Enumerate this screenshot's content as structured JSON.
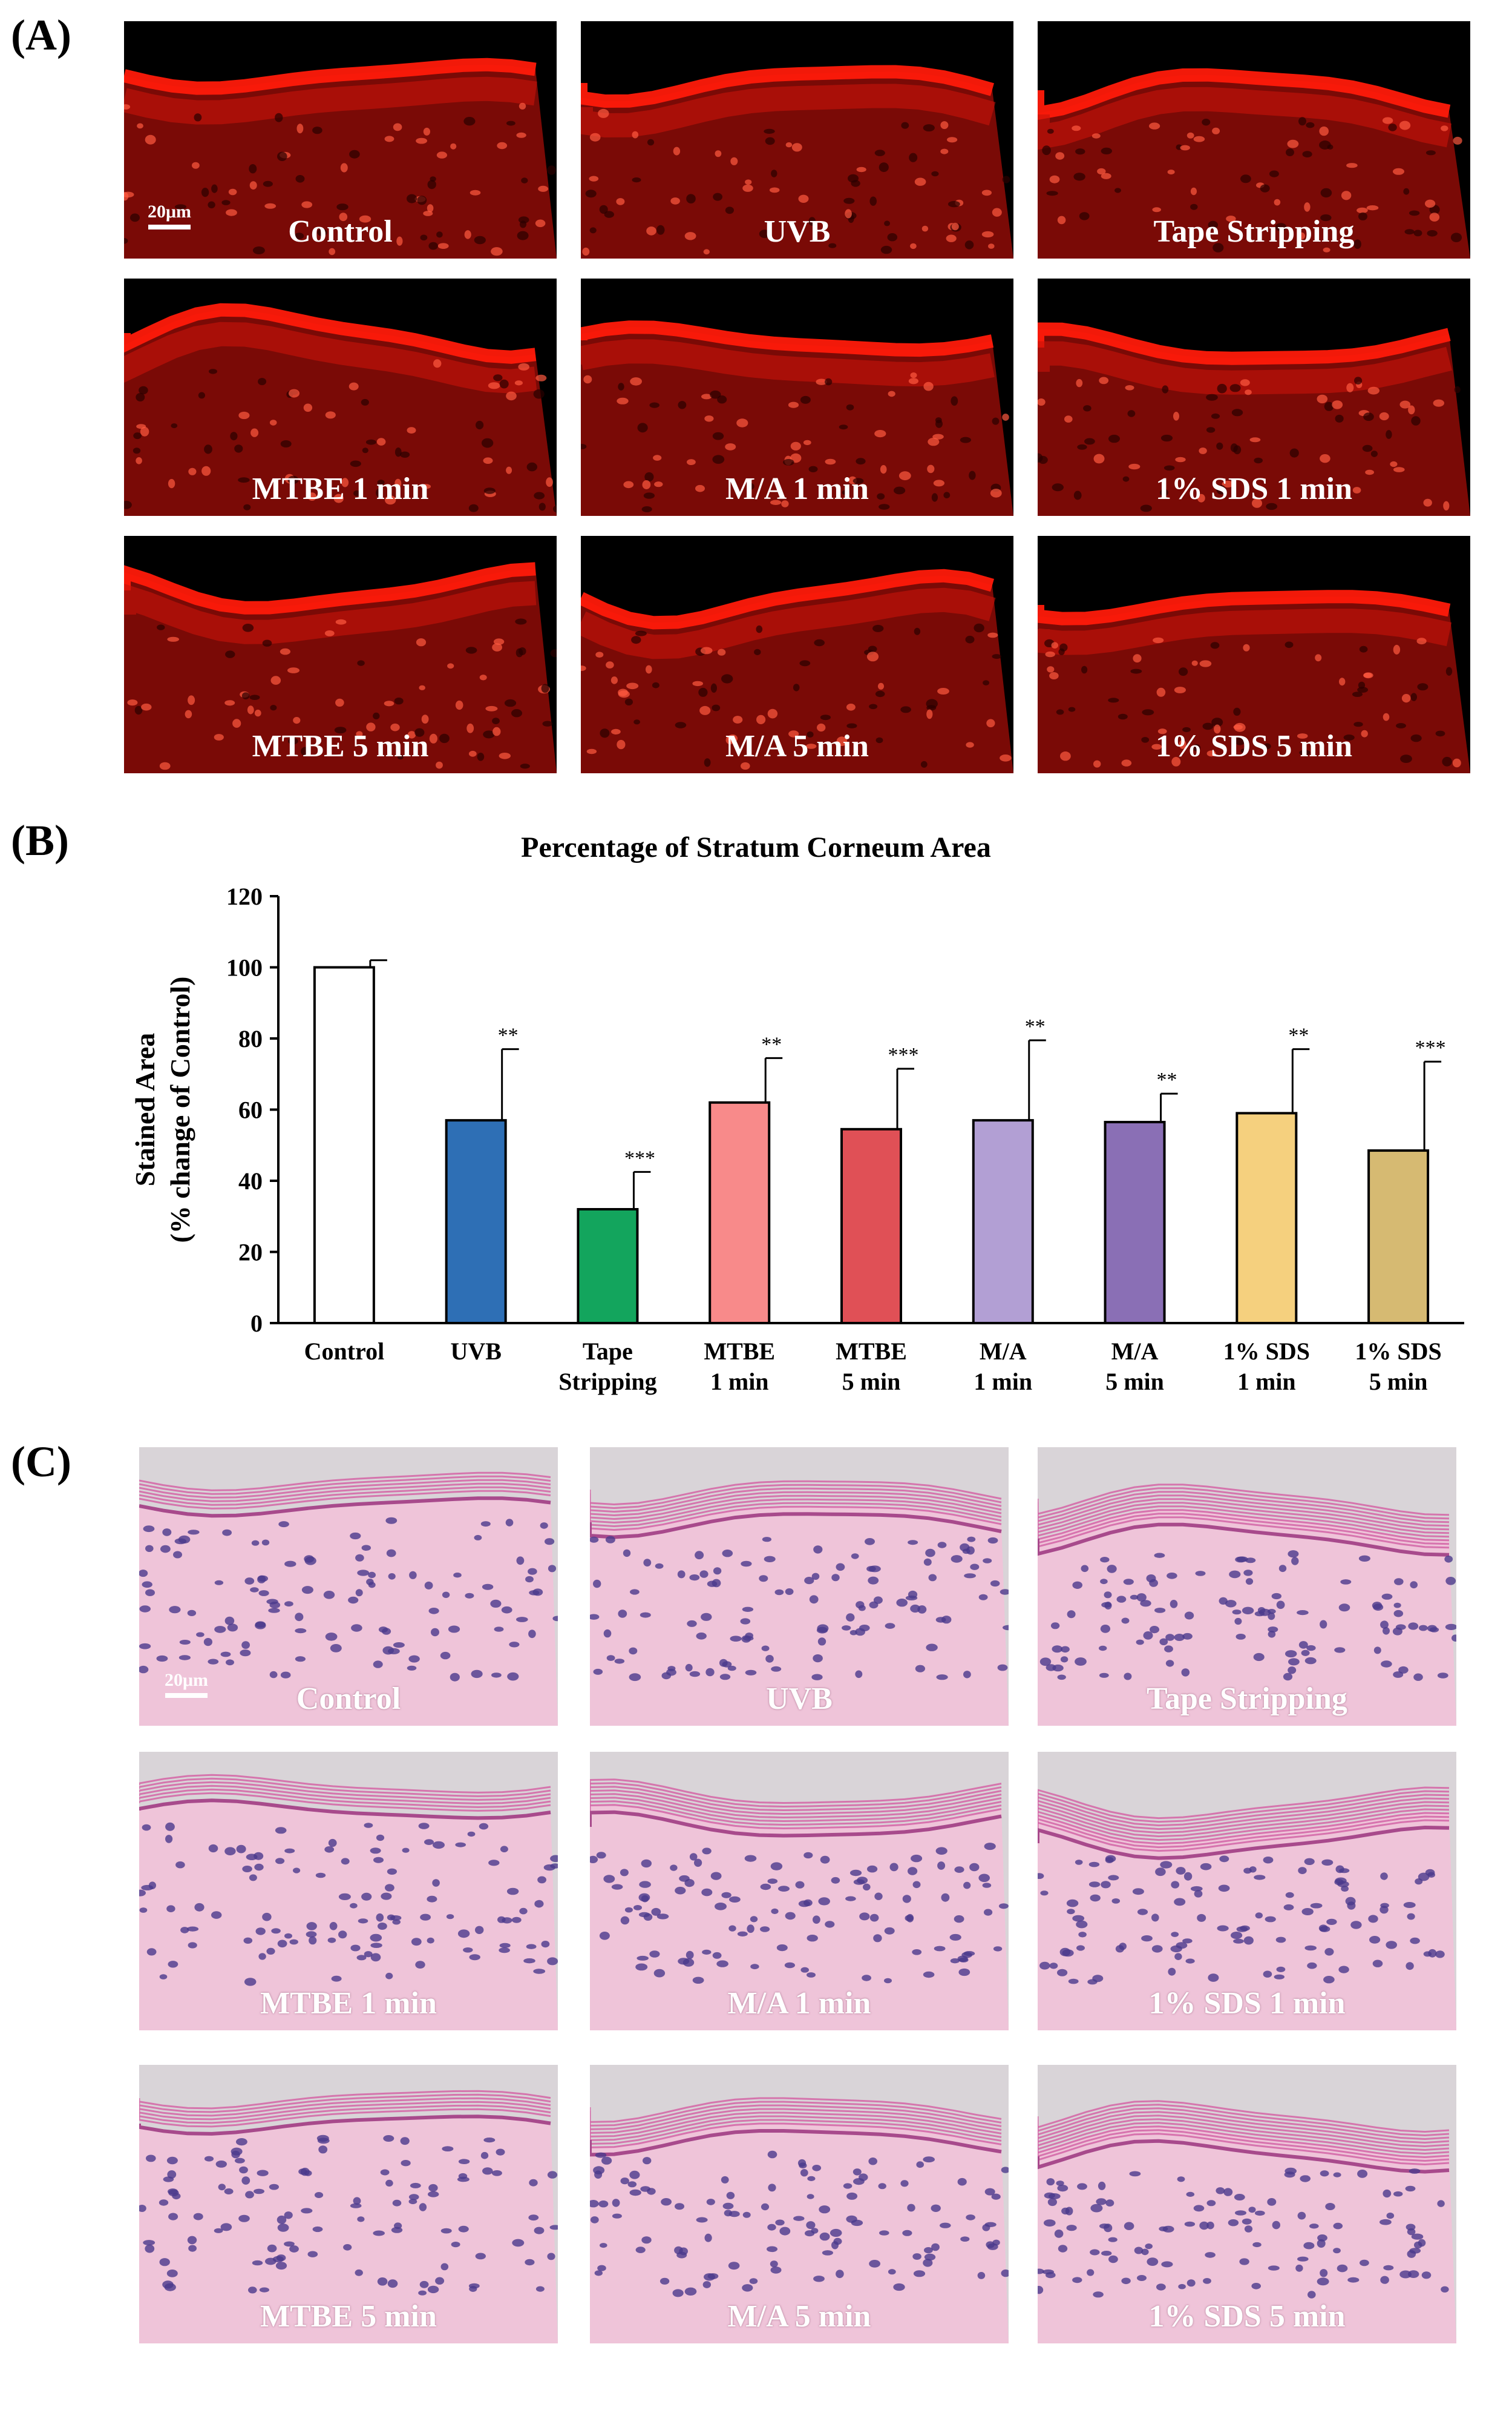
{
  "panels": {
    "a": "(A)",
    "b": "(B)",
    "c": "(C)"
  },
  "scale_bar": "20μm",
  "fluorescence_images": [
    "Control",
    "UVB",
    "Tape Stripping",
    "MTBE 1 min",
    "M/A 1 min",
    "1% SDS 1 min",
    "MTBE 5 min",
    "M/A 5 min",
    "1% SDS 5 min"
  ],
  "he_images": [
    "Control",
    "UVB",
    "Tape Stripping",
    "MTBE 1 min",
    "M/A 1 min",
    "1% SDS 1 min",
    "MTBE 5 min",
    "M/A 5 min",
    "1% SDS 5 min"
  ],
  "colors": {
    "fluor_background": "#000000",
    "fluor_stain": "#ff1a0a",
    "he_background": "#e6dde2",
    "he_stratum": "#d46aa8",
    "he_nuclei": "#4b3a8c"
  },
  "chart_data": {
    "type": "bar",
    "title": "Percentage of Stratum Corneum Area",
    "ylabel_line1": "Stained Area",
    "ylabel_line2": "(% change of Control)",
    "xlabel": "",
    "ylim": [
      0,
      120
    ],
    "yticks": [
      0,
      20,
      40,
      60,
      80,
      100,
      120
    ],
    "grid": false,
    "legend": "none",
    "categories": [
      [
        "Control"
      ],
      [
        "UVB"
      ],
      [
        "Tape",
        "Stripping"
      ],
      [
        "MTBE",
        "1 min"
      ],
      [
        "MTBE",
        "5 min"
      ],
      [
        "M/A",
        "1 min"
      ],
      [
        "M/A",
        "5 min"
      ],
      [
        "1% SDS",
        "1 min"
      ],
      [
        "1% SDS",
        "5 min"
      ]
    ],
    "values": [
      100,
      57,
      32,
      62,
      54.5,
      57,
      56.5,
      59,
      48.5
    ],
    "errors": [
      2,
      20,
      10.5,
      12.5,
      17,
      22.5,
      8,
      18,
      25
    ],
    "significance": [
      "",
      "**",
      "***",
      "**",
      "***",
      "**",
      "**",
      "**",
      "***"
    ],
    "bar_colors": [
      "#ffffff",
      "#2e6fb5",
      "#13a55d",
      "#f88a8a",
      "#e05056",
      "#b29fd4",
      "#8a6fb5",
      "#f5d07e",
      "#d6ba72"
    ]
  }
}
